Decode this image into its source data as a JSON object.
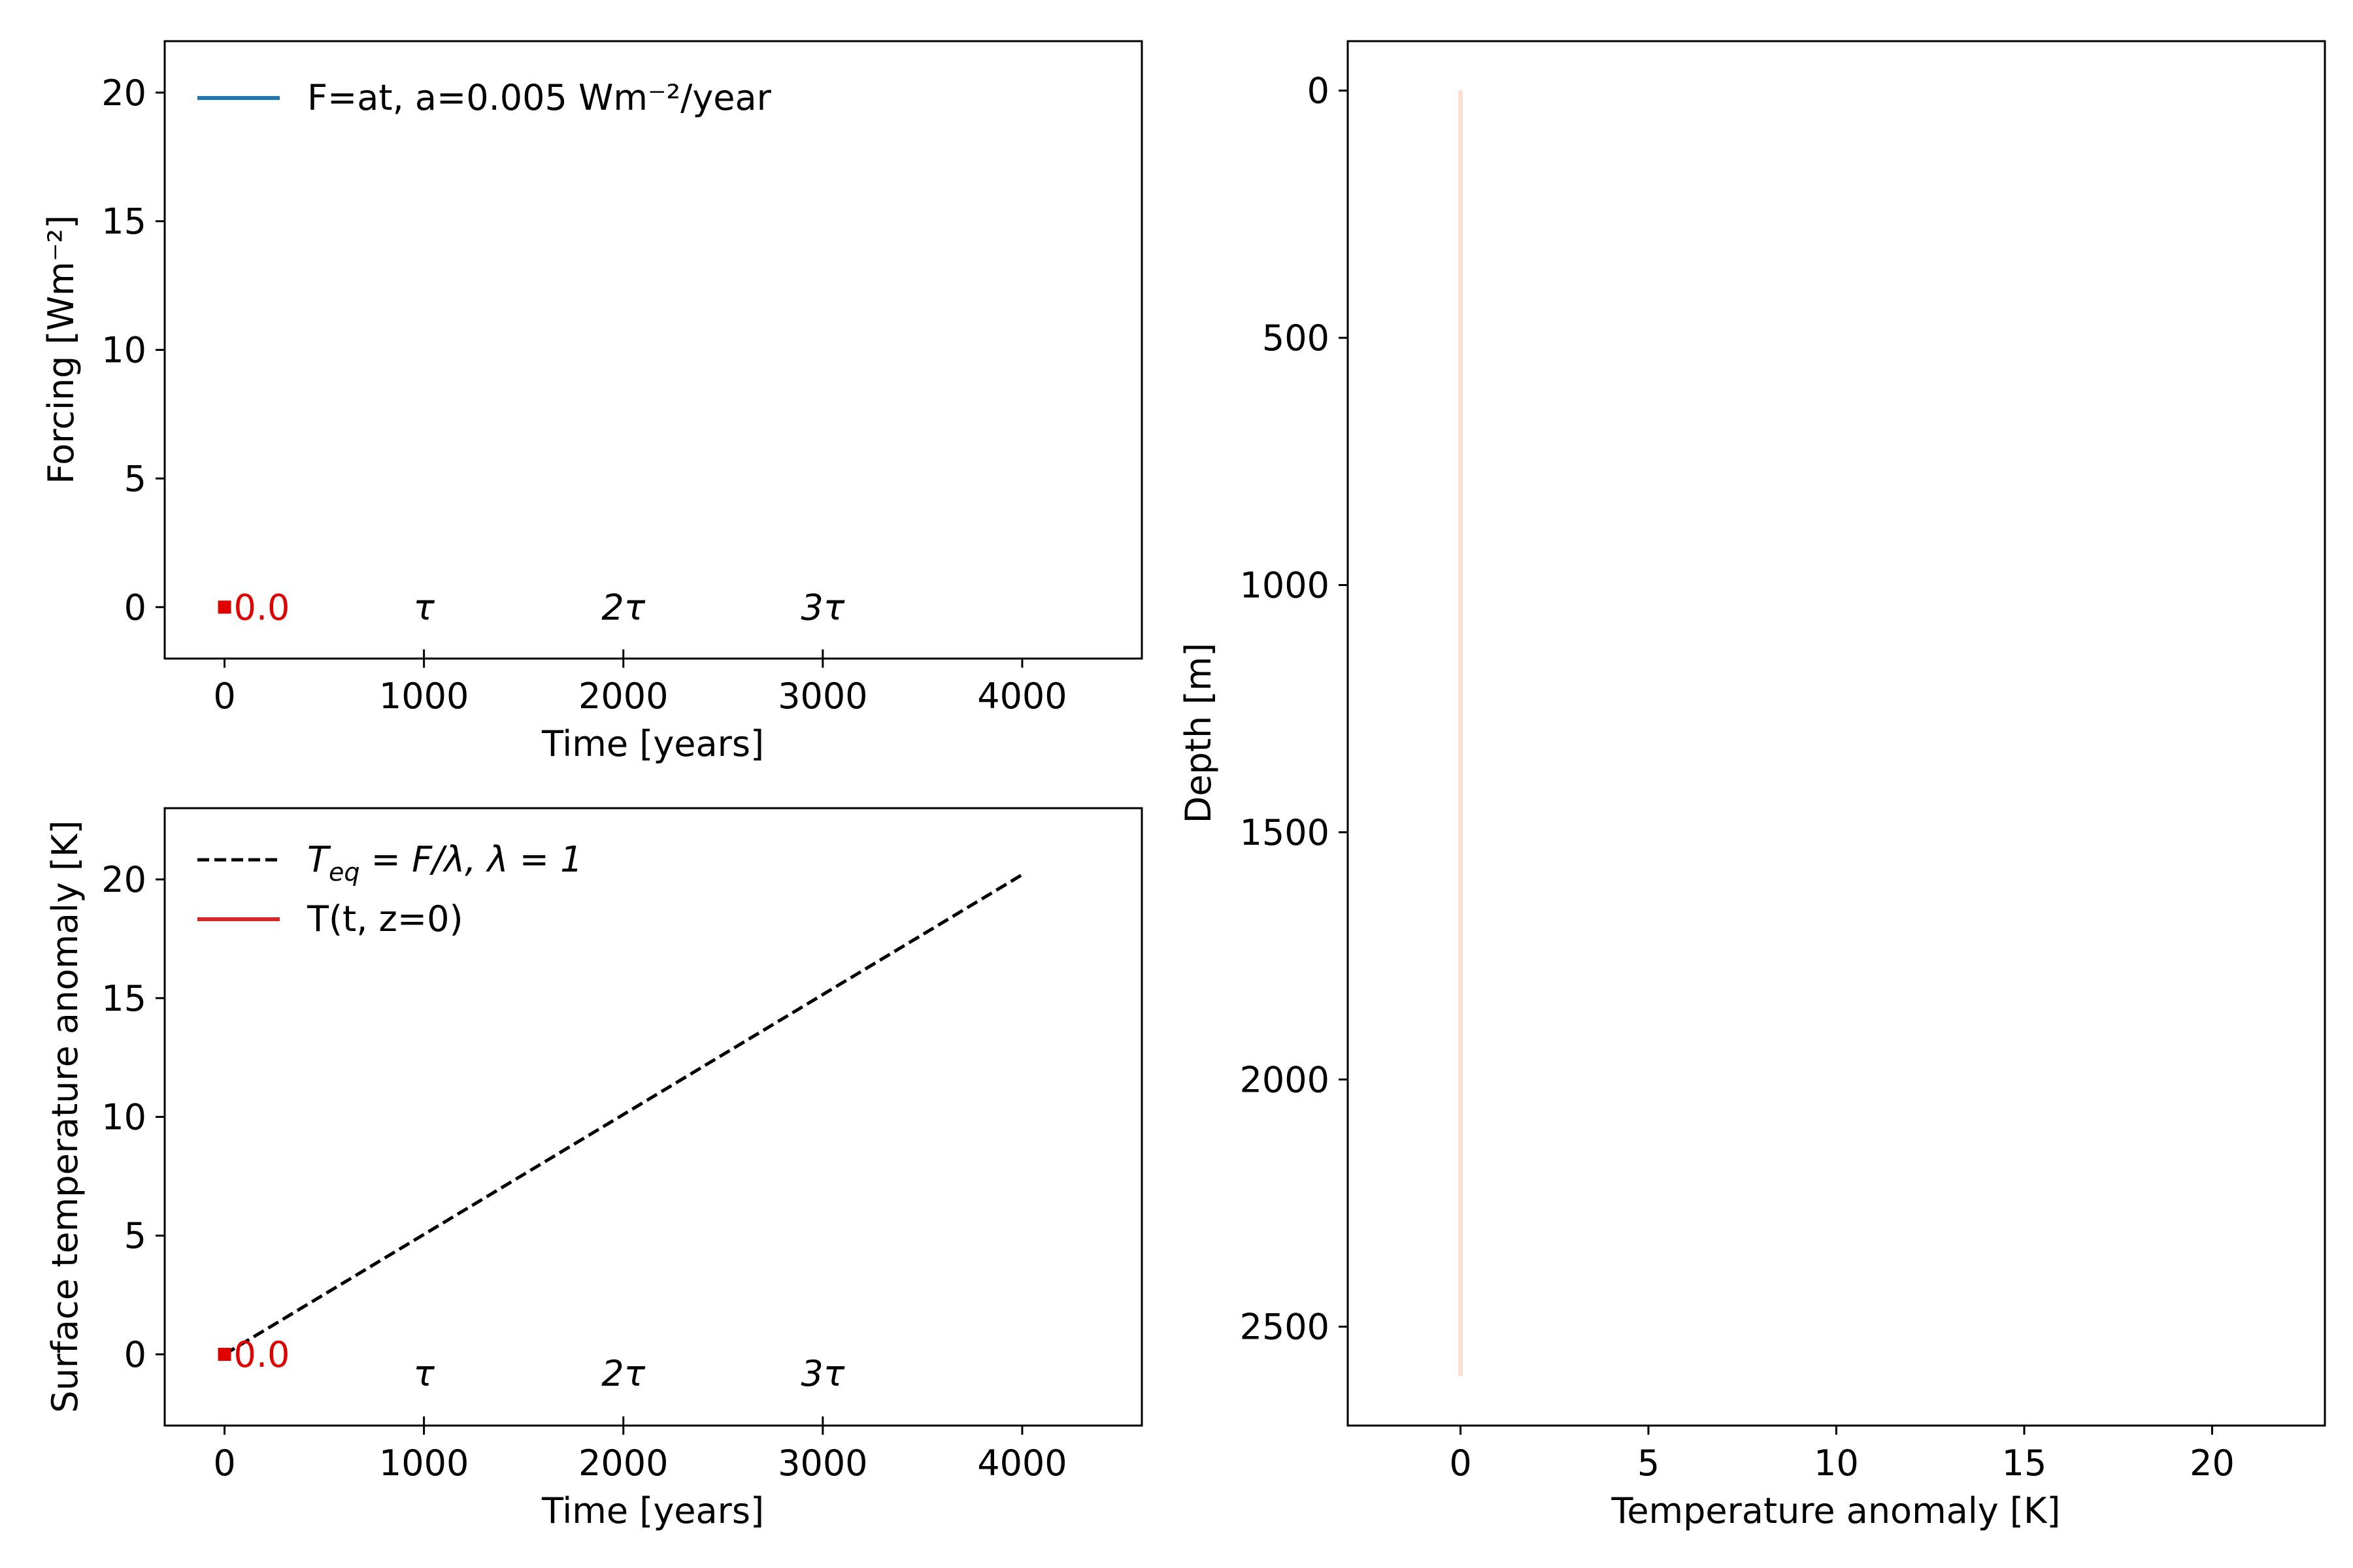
{
  "chart_data": [
    {
      "id": "forcing",
      "type": "line",
      "xlabel": "Time [years]",
      "ylabel": "Forcing [Wm⁻²]",
      "xlim": [
        -300,
        4600
      ],
      "ylim": [
        -2,
        22
      ],
      "xticks": [
        0,
        1000,
        2000,
        3000,
        4000
      ],
      "yticks": [
        0,
        5,
        10,
        15,
        20
      ],
      "grid": false,
      "legend_placement": "upper-left",
      "legend": [
        {
          "label": "F=at, a=0.005 Wm⁻²/year",
          "style": "solid",
          "color": "#1f77b4"
        }
      ],
      "series": [],
      "marker": {
        "x": 0,
        "y": 0,
        "label": "0.0",
        "color": "#e00000"
      },
      "annotations": [
        {
          "x": 1000,
          "y": 0,
          "text": "τ"
        },
        {
          "x": 2000,
          "y": 0,
          "text": "2τ"
        },
        {
          "x": 3000,
          "y": 0,
          "text": "3τ"
        }
      ]
    },
    {
      "id": "surface",
      "type": "line",
      "xlabel": "Time [years]",
      "ylabel": "Surface temperature anomaly [K]",
      "xlim": [
        -300,
        4600
      ],
      "ylim": [
        -3,
        23
      ],
      "xticks": [
        0,
        1000,
        2000,
        3000,
        4000
      ],
      "yticks": [
        0,
        5,
        10,
        15,
        20
      ],
      "grid": false,
      "legend_placement": "upper-left",
      "legend": [
        {
          "label": "T_eq = F/λ, λ = 1",
          "style": "dashed",
          "color": "#000000"
        },
        {
          "label": "T(t, z=0)",
          "style": "solid",
          "color": "#d62728"
        }
      ],
      "series": [
        {
          "style": "dashed",
          "color": "#000000",
          "x": [
            0,
            4000
          ],
          "y": [
            0,
            20.2
          ]
        }
      ],
      "marker": {
        "x": 0,
        "y": 0,
        "label": "0.0",
        "color": "#e00000"
      },
      "annotations": [
        {
          "x": 1000,
          "y": -0.8,
          "text": "τ"
        },
        {
          "x": 2000,
          "y": -0.8,
          "text": "2τ"
        },
        {
          "x": 3000,
          "y": -0.8,
          "text": "3τ"
        }
      ]
    },
    {
      "id": "profile",
      "type": "line",
      "xlabel": "Temperature anomaly [K]",
      "ylabel": "Depth [m]",
      "xlim": [
        -3,
        23
      ],
      "ylim": [
        2700,
        -100
      ],
      "y_inverted": true,
      "xticks": [
        0,
        5,
        10,
        15,
        20
      ],
      "yticks": [
        0,
        500,
        1000,
        1500,
        2000,
        2500
      ],
      "grid": false,
      "series": [
        {
          "style": "solid",
          "color": "#fde0d2",
          "x": [
            0,
            0
          ],
          "y": [
            0,
            2600
          ]
        }
      ]
    }
  ]
}
